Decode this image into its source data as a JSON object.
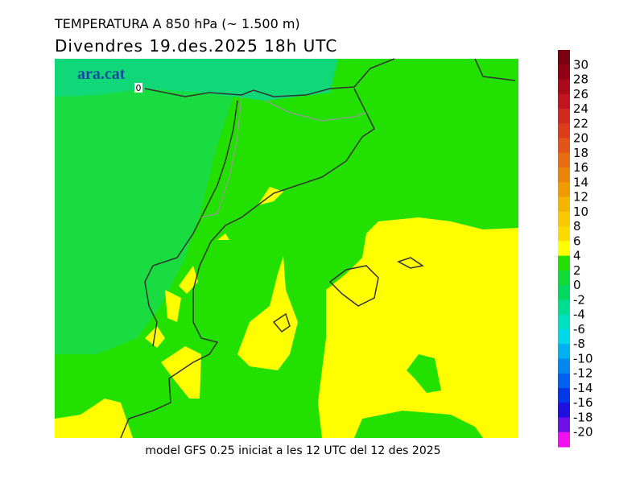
{
  "header": {
    "title": "TEMPERATURA A 850 hPa (~ 1.500 m)",
    "subtitle": "Divendres  19.des.2025 18h UTC"
  },
  "map": {
    "logo": "ara.cat",
    "contour_label": "0"
  },
  "colorbar": {
    "labels": [
      30,
      28,
      26,
      24,
      22,
      20,
      18,
      16,
      14,
      12,
      10,
      8,
      6,
      4,
      2,
      0,
      -2,
      -4,
      -6,
      -8,
      -10,
      -12,
      -14,
      -16,
      -18,
      -20
    ],
    "colors": [
      "#7a0012",
      "#930016",
      "#ab0a1a",
      "#c0141e",
      "#d02a20",
      "#dc3c1c",
      "#e45418",
      "#e86c10",
      "#ec8408",
      "#f09c00",
      "#f4b400",
      "#f8c800",
      "#fcdc00",
      "#ffff00",
      "#22e000",
      "#10dc38",
      "#00d860",
      "#00dc90",
      "#00e0c0",
      "#00d8e8",
      "#00b0f0",
      "#0088f0",
      "#0060f0",
      "#0038e8",
      "#2010e0",
      "#7010e8",
      "#f010f0"
    ]
  },
  "footer": "model GFS 0.25 iniciat a les 12 UTC del 12 des 2025"
}
